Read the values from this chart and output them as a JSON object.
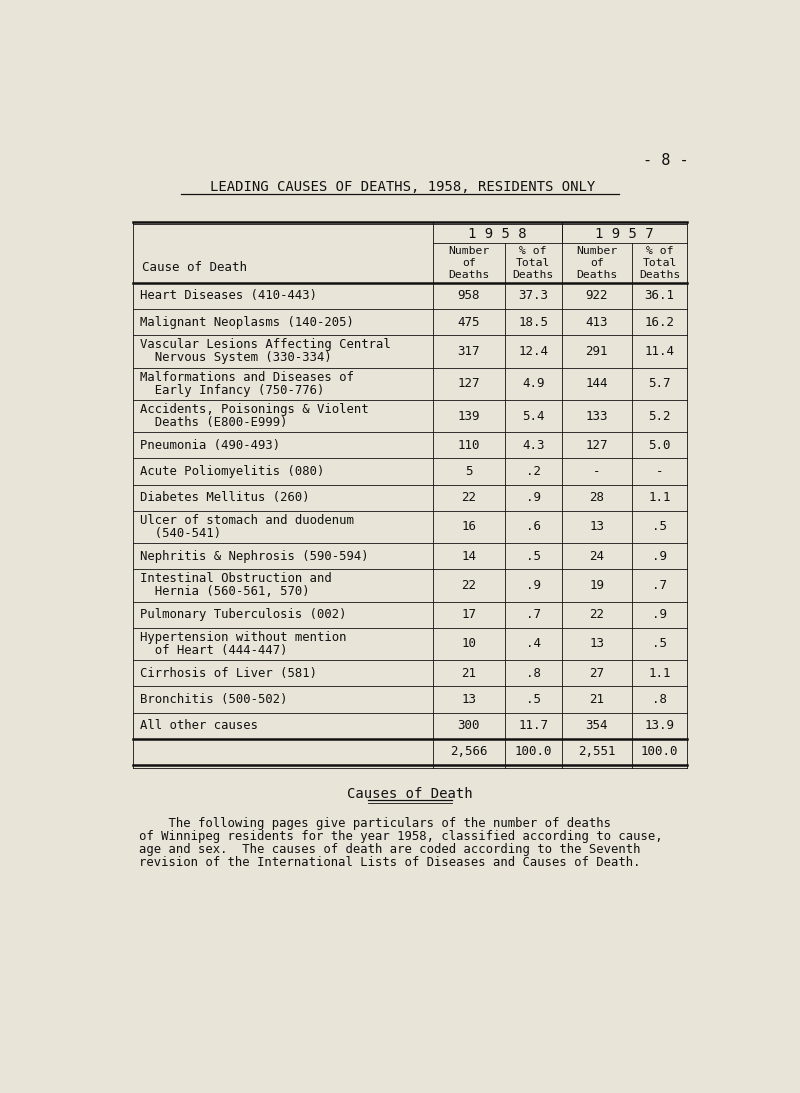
{
  "page_number": "- 8 -",
  "title": "LEADING CAUSES OF DEATHS, 1958, RESIDENTS ONLY",
  "year1": "1 9 5 8",
  "year2": "1 9 5 7",
  "cause_header": "Cause of Death",
  "rows": [
    {
      "cause": "Heart Diseases (410-443)",
      "n1": "958",
      "p1": "37.3",
      "n2": "922",
      "p2": "36.1",
      "two_line": false
    },
    {
      "cause": "Malignant Neoplasms (140-205)",
      "n1": "475",
      "p1": "18.5",
      "n2": "413",
      "p2": "16.2",
      "two_line": false
    },
    {
      "cause": "Vascular Lesions Affecting Central",
      "cause2": "  Nervous System (330-334)",
      "n1": "317",
      "p1": "12.4",
      "n2": "291",
      "p2": "11.4",
      "two_line": true
    },
    {
      "cause": "Malformations and Diseases of",
      "cause2": "  Early Infancy (750-776)",
      "n1": "127",
      "p1": "4.9",
      "n2": "144",
      "p2": "5.7",
      "two_line": true
    },
    {
      "cause": "Accidents, Poisonings & Violent",
      "cause2": "  Deaths (E800-E999)",
      "n1": "139",
      "p1": "5.4",
      "n2": "133",
      "p2": "5.2",
      "two_line": true
    },
    {
      "cause": "Pneumonia (490-493)",
      "n1": "110",
      "p1": "4.3",
      "n2": "127",
      "p2": "5.0",
      "two_line": false
    },
    {
      "cause": "Acute Poliomyelitis (080)",
      "n1": "5",
      "p1": ".2",
      "n2": "-",
      "p2": "-",
      "two_line": false
    },
    {
      "cause": "Diabetes Mellitus (260)",
      "n1": "22",
      "p1": ".9",
      "n2": "28",
      "p2": "1.1",
      "two_line": false
    },
    {
      "cause": "Ulcer of stomach and duodenum",
      "cause2": "  (540-541)",
      "n1": "16",
      "p1": ".6",
      "n2": "13",
      "p2": ".5",
      "two_line": true
    },
    {
      "cause": "Nephritis & Nephrosis (590-594)",
      "n1": "14",
      "p1": ".5",
      "n2": "24",
      "p2": ".9",
      "two_line": false
    },
    {
      "cause": "Intestinal Obstruction and",
      "cause2": "  Hernia (560-561, 570)",
      "n1": "22",
      "p1": ".9",
      "n2": "19",
      "p2": ".7",
      "two_line": true
    },
    {
      "cause": "Pulmonary Tuberculosis (002)",
      "n1": "17",
      "p1": ".7",
      "n2": "22",
      "p2": ".9",
      "two_line": false
    },
    {
      "cause": "Hypertension without mention",
      "cause2": "  of Heart (444-447)",
      "n1": "10",
      "p1": ".4",
      "n2": "13",
      "p2": ".5",
      "two_line": true
    },
    {
      "cause": "Cirrhosis of Liver (581)",
      "n1": "21",
      "p1": ".8",
      "n2": "27",
      "p2": "1.1",
      "two_line": false
    },
    {
      "cause": "Bronchitis (500-502)",
      "n1": "13",
      "p1": ".5",
      "n2": "21",
      "p2": ".8",
      "two_line": false
    },
    {
      "cause": "All other causes",
      "n1": "300",
      "p1": "11.7",
      "n2": "354",
      "p2": "13.9",
      "two_line": false
    }
  ],
  "totals": {
    "n1": "2,566",
    "p1": "100.0",
    "n2": "2,551",
    "p2": "100.0"
  },
  "subtitle": "Causes of Death",
  "footnote_lines": [
    "    The following pages give particulars of the number of deaths",
    "of Winnipeg residents for the year 1958, classified according to cause,",
    "age and sex.  The causes of death are coded according to the Seventh",
    "revision of the International Lists of Diseases and Causes of Death."
  ],
  "bg_color": "#e8e4d8",
  "text_color": "#111111"
}
